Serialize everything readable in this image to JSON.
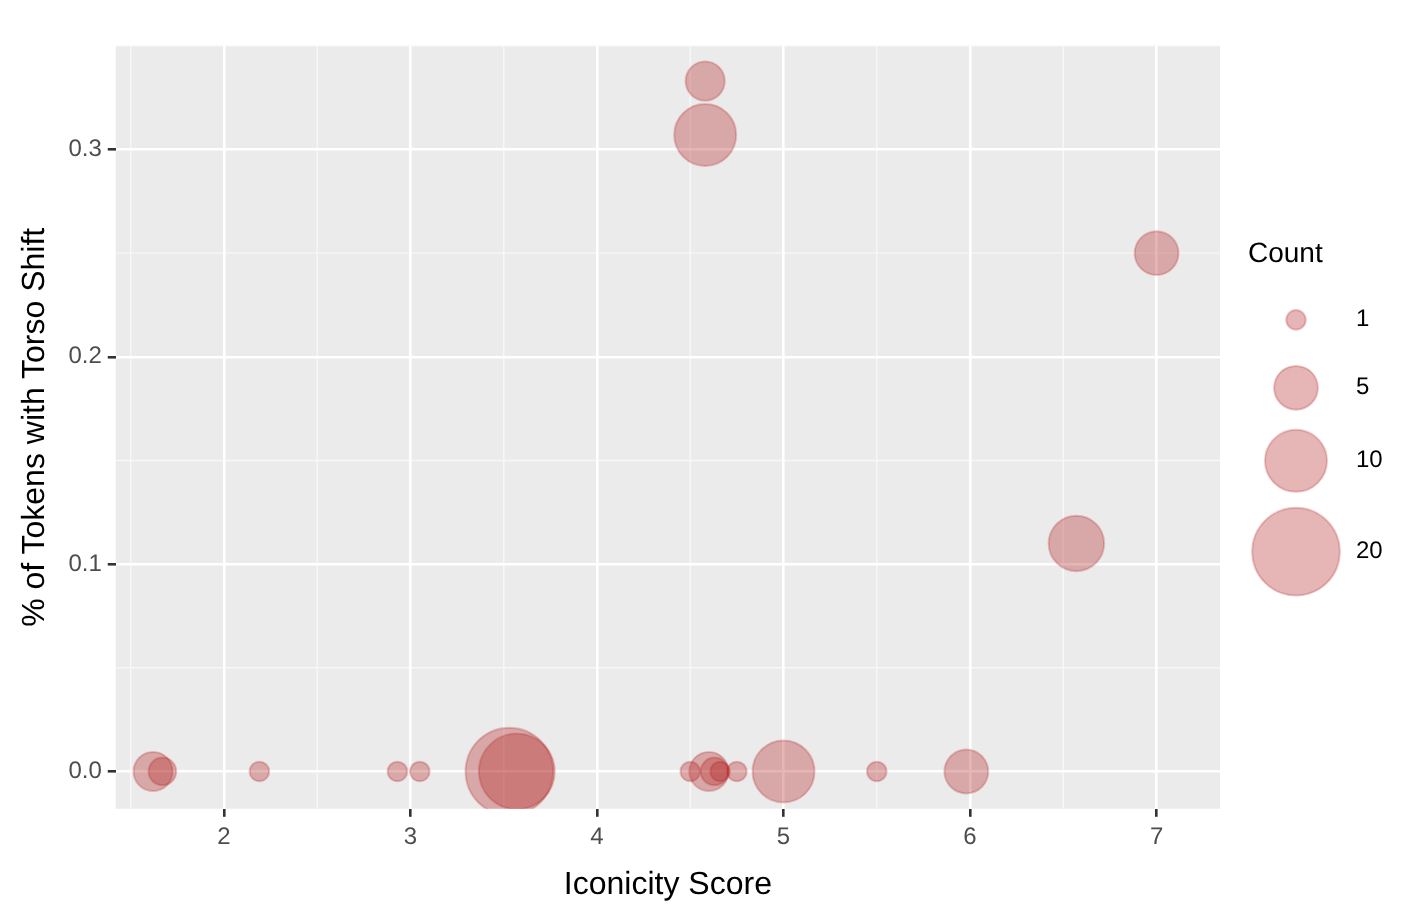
{
  "chart_data": {
    "type": "bubble",
    "xlabel": "Iconicity Score",
    "ylabel": "% of Tokens with Torso Shift",
    "legend_title": "Count",
    "x": [
      4.58,
      4.58,
      7.0,
      6.57,
      1.62,
      1.67,
      2.19,
      2.93,
      3.05,
      3.53,
      3.57,
      4.5,
      4.6,
      4.63,
      4.66,
      4.75,
      5.0,
      5.5,
      5.98
    ],
    "values": [
      0.333,
      0.307,
      0.25,
      0.11,
      0,
      0,
      0,
      0,
      0,
      0,
      0,
      0,
      0,
      0,
      0,
      0,
      0,
      0,
      0
    ],
    "sizes": [
      4,
      10,
      5,
      8,
      4,
      2,
      1,
      1,
      1,
      20,
      15,
      1,
      4,
      2,
      1,
      1,
      10,
      1,
      5
    ],
    "size_legend": [
      1,
      5,
      10,
      20
    ],
    "color": "#b22222",
    "xlim": [
      1.42,
      7.34
    ],
    "xticks": [
      2,
      3,
      4,
      5,
      6,
      7
    ],
    "ylim": [
      -0.018,
      0.35
    ],
    "yticks": [
      {
        "value": 0,
        "label": "0.0"
      },
      {
        "value": 0.1,
        "label": "0.1"
      },
      {
        "value": 0.2,
        "label": "0.2"
      },
      {
        "value": 0.3,
        "label": "0.3"
      }
    ],
    "grid": true
  }
}
